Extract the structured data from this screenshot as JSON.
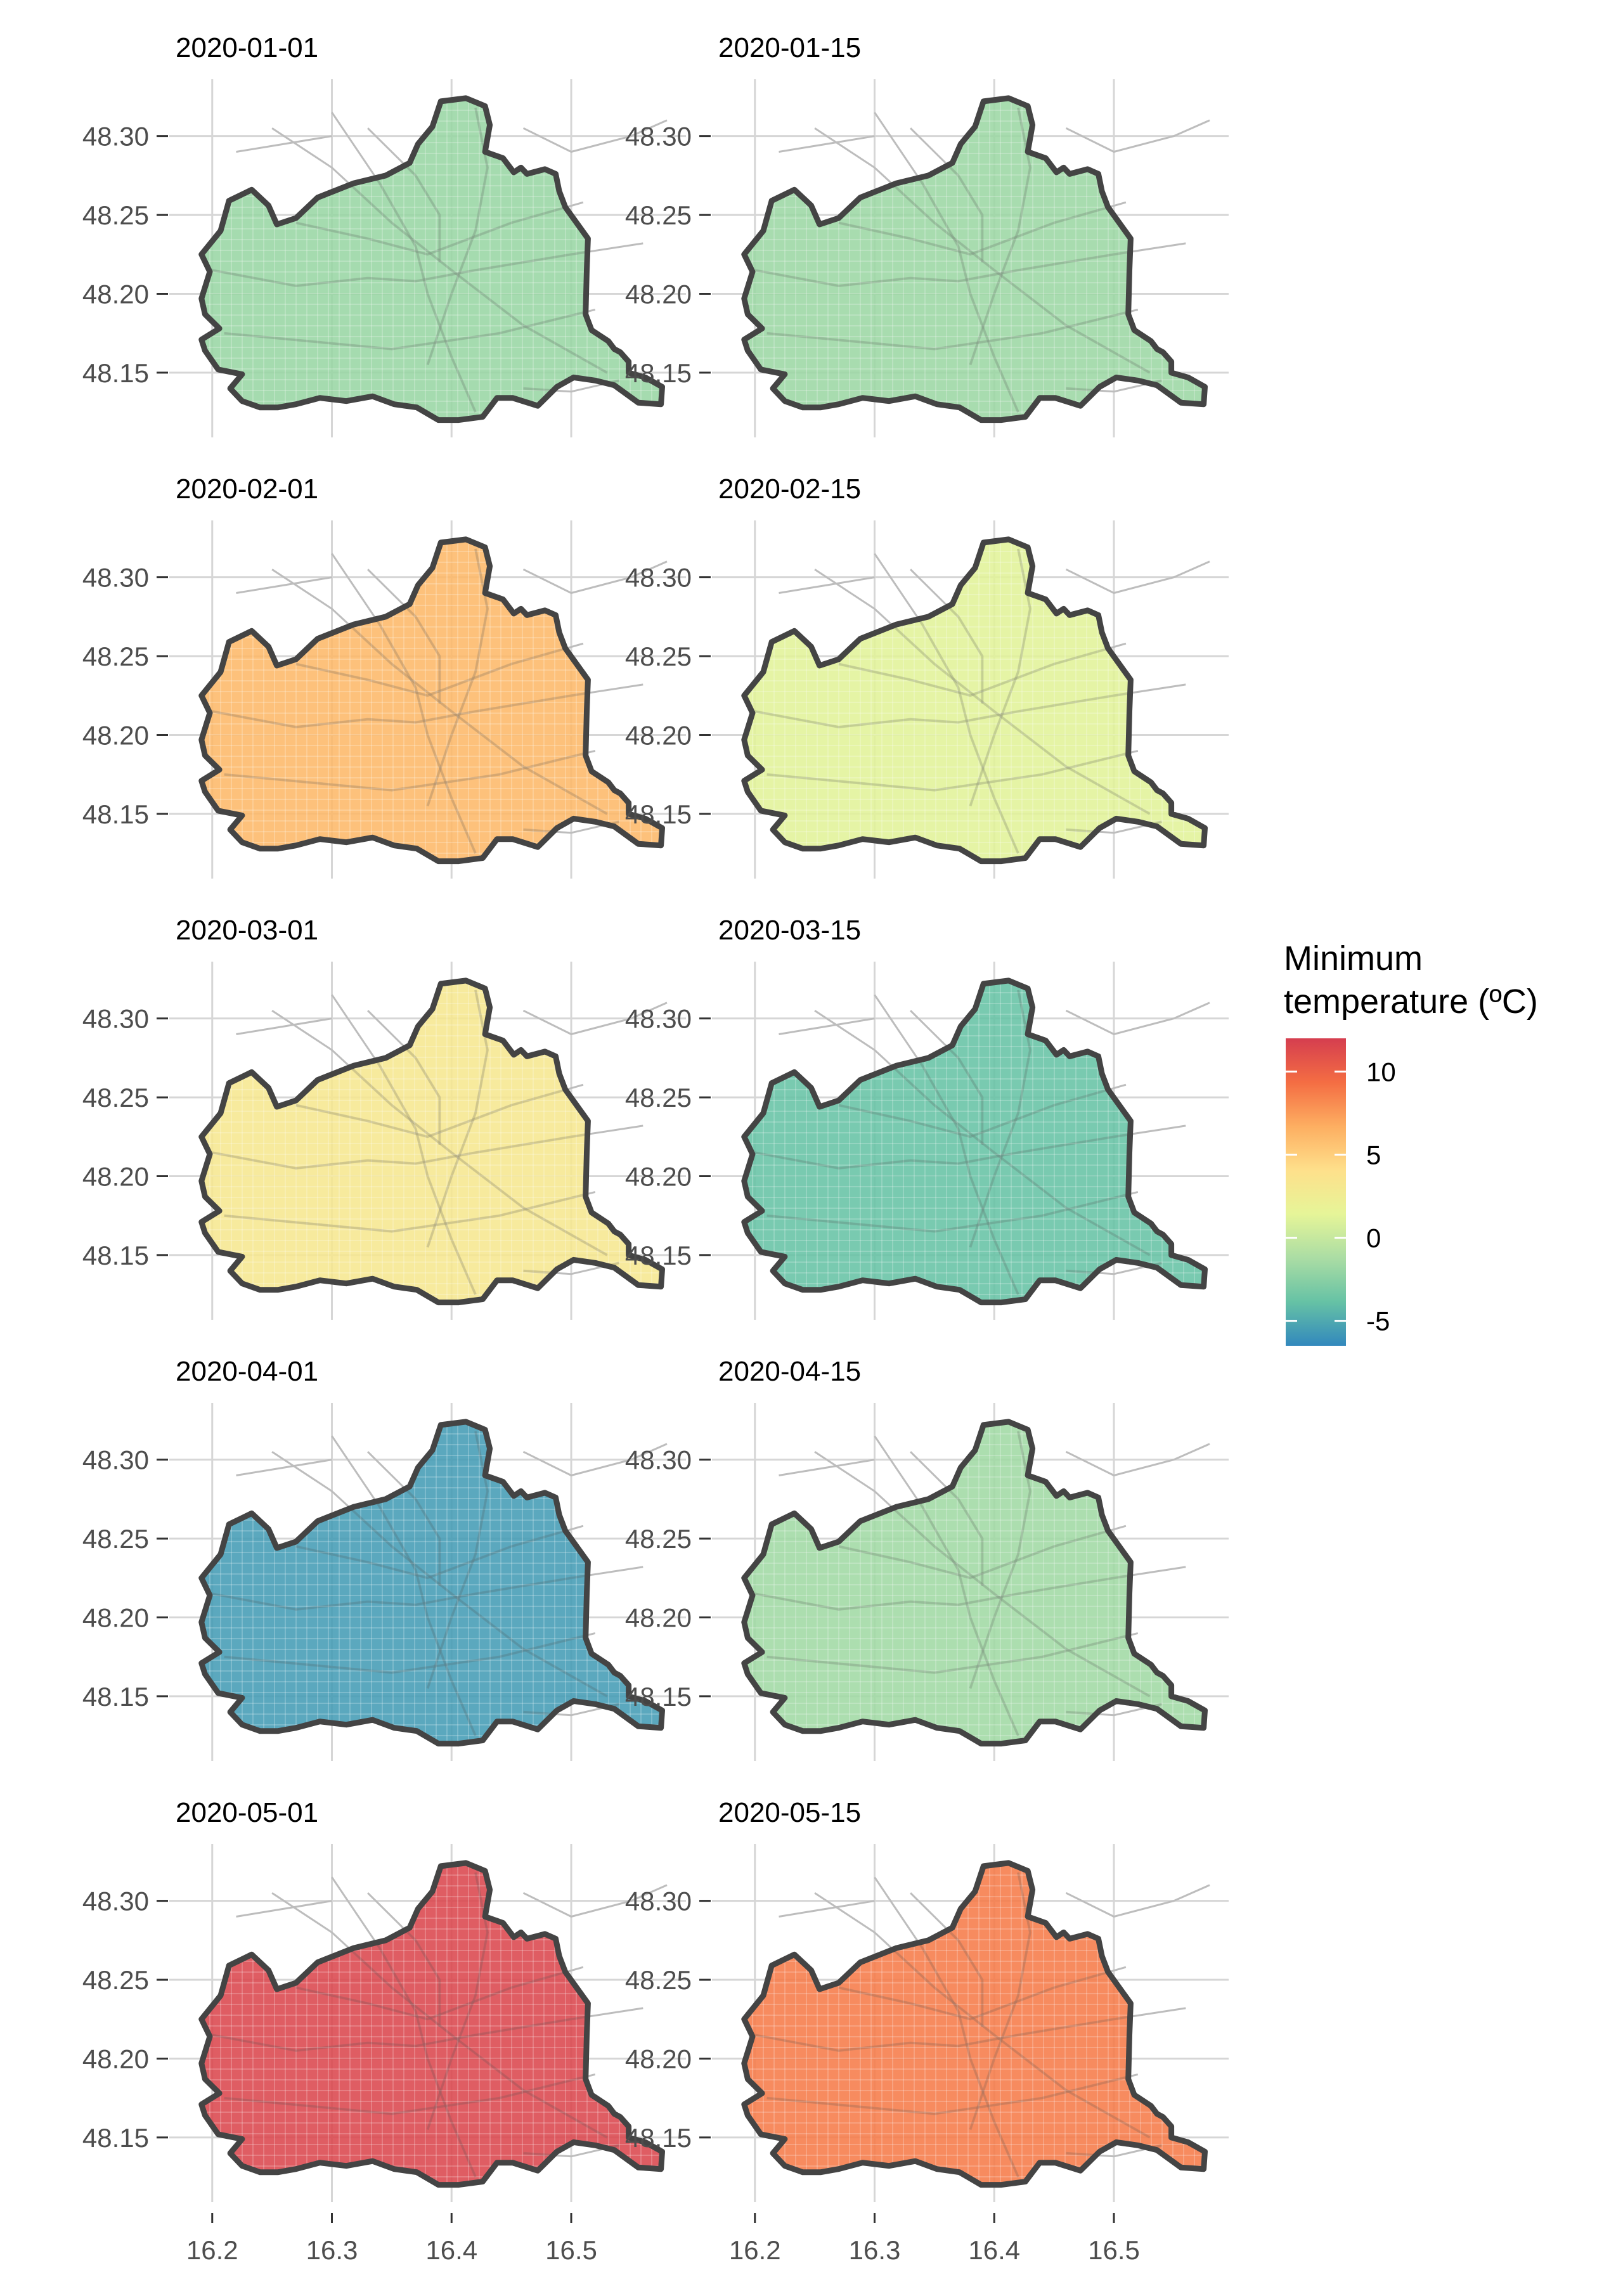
{
  "chart_data": {
    "type": "map",
    "facets": [
      {
        "date": "2020-01-01",
        "min_temp": -1.9
      },
      {
        "date": "2020-01-15",
        "min_temp": -1.8
      },
      {
        "date": "2020-02-01",
        "min_temp": 6.2
      },
      {
        "date": "2020-02-15",
        "min_temp": 1.2
      },
      {
        "date": "2020-03-01",
        "min_temp": 3.2
      },
      {
        "date": "2020-03-15",
        "min_temp": -3.8
      },
      {
        "date": "2020-04-01",
        "min_temp": -5.6
      },
      {
        "date": "2020-04-15",
        "min_temp": -1.6
      },
      {
        "date": "2020-05-01",
        "min_temp": 11.5
      },
      {
        "date": "2020-05-15",
        "min_temp": 8.8
      }
    ],
    "x_ticks": [
      "16.2",
      "16.3",
      "16.4",
      "16.5"
    ],
    "x_tick_values": [
      16.2,
      16.3,
      16.4,
      16.5
    ],
    "y_ticks": [
      "48.30",
      "48.25",
      "48.20",
      "48.15"
    ],
    "y_tick_values": [
      48.3,
      48.25,
      48.2,
      48.15
    ],
    "xlim": [
      16.18,
      16.58
    ],
    "ylim": [
      48.115,
      48.33
    ],
    "legend": {
      "title_lines": [
        "Minimum",
        "temperature (ºC)"
      ],
      "ticks": [
        "10",
        "5",
        "0",
        "-5"
      ],
      "tick_values": [
        10,
        5,
        0,
        -5
      ],
      "range": [
        -6.5,
        12
      ],
      "placement": "right",
      "palette": "Spectral"
    },
    "colors": {
      "boundary": "#444444",
      "grid": "#d6d6d6",
      "roads": "#bdbdbd",
      "spectral_stops": [
        "#3288bd",
        "#66c2a5",
        "#abdda4",
        "#e6f598",
        "#fee08b",
        "#fdae61",
        "#f46d43",
        "#d53e4f"
      ]
    },
    "grid": true
  }
}
